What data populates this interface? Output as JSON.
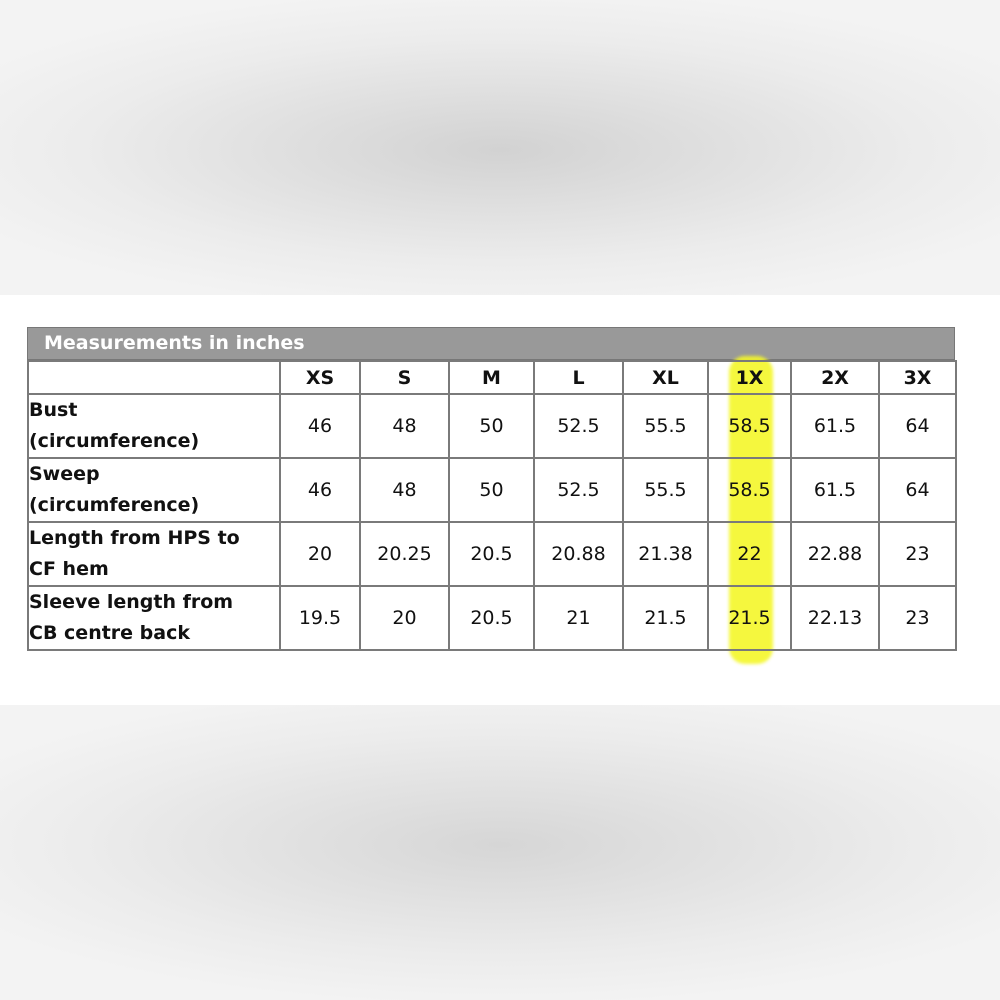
{
  "title": "Measurements in inches",
  "highlight_color": "#f4f72a",
  "highlighted_column": "1X",
  "columns": [
    "XS",
    "S",
    "M",
    "L",
    "XL",
    "1X",
    "2X",
    "3X"
  ],
  "rows": [
    {
      "label_line1": "Bust",
      "label_line2": "(circumference)",
      "values": [
        "46",
        "48",
        "50",
        "52.5",
        "55.5",
        "58.5",
        "61.5",
        "64"
      ]
    },
    {
      "label_line1": "Sweep",
      "label_line2": "(circumference)",
      "values": [
        "46",
        "48",
        "50",
        "52.5",
        "55.5",
        "58.5",
        "61.5",
        "64"
      ]
    },
    {
      "label_line1": "Length from HPS to",
      "label_line2": "CF hem",
      "values": [
        "20",
        "20.25",
        "20.5",
        "20.88",
        "21.38",
        "22",
        "22.88",
        "23"
      ]
    },
    {
      "label_line1": "Sleeve length from",
      "label_line2": "CB centre back",
      "values": [
        "19.5",
        "20",
        "20.5",
        "21",
        "21.5",
        "21.5",
        "22.13",
        "23"
      ]
    }
  ]
}
